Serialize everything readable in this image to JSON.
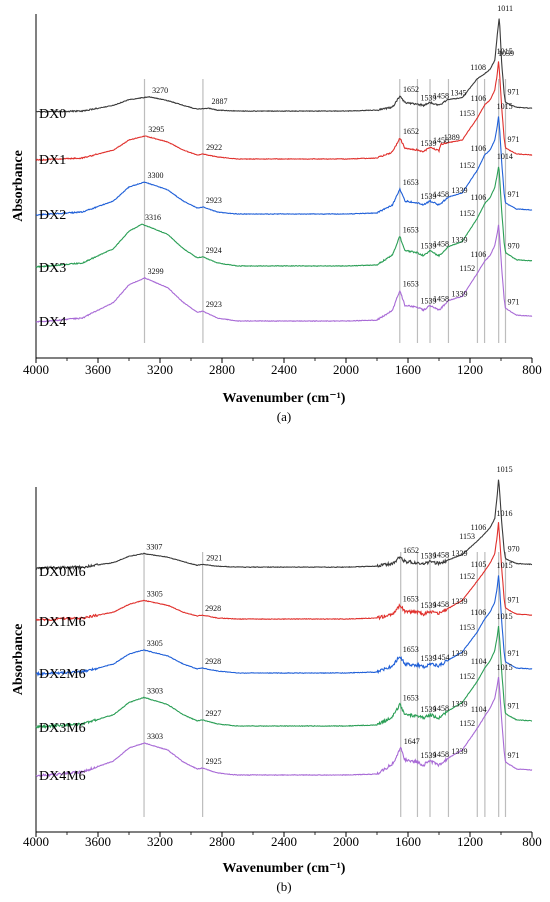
{
  "chart_data": [
    {
      "type": "line",
      "panel_label": "(a)",
      "xlabel": "Wavenumber (cm⁻¹)",
      "ylabel": "Absorbance",
      "xlim": [
        4000,
        800
      ],
      "x_ticks": [
        "4000",
        "3600",
        "3200",
        "2800",
        "2400",
        "2000",
        "1600",
        "1200",
        "800"
      ],
      "x_reversed": true,
      "y_ticks_shown": false,
      "reference_lines": [
        3300,
        2923,
        1653,
        1539,
        1458,
        1339,
        1152,
        1106,
        1015,
        971
      ],
      "series": [
        {
          "name": "DX0",
          "color": "#3a3a3a",
          "x": [
            4000,
            3700,
            3500,
            3400,
            3270,
            3150,
            3050,
            2960,
            2887,
            2830,
            2700,
            2300,
            2000,
            1800,
            1700,
            1652,
            1620,
            1539,
            1500,
            1458,
            1400,
            1345,
            1250,
            1153,
            1108,
            1070,
            1039,
            1025,
            1011,
            995,
            980,
            971,
            900,
            800
          ],
          "y": [
            0.0,
            0.01,
            0.07,
            0.13,
            0.16,
            0.12,
            0.07,
            0.03,
            0.04,
            0.02,
            0.01,
            0.01,
            0.01,
            0.02,
            0.05,
            0.17,
            0.1,
            0.08,
            0.07,
            0.1,
            0.07,
            0.13,
            0.15,
            0.35,
            0.4,
            0.45,
            0.55,
            0.8,
            1.0,
            0.5,
            0.2,
            0.1,
            0.05,
            0.04
          ]
        },
        {
          "name": "DX1",
          "color": "#e0302c",
          "x": [
            4000,
            3700,
            3500,
            3400,
            3295,
            3150,
            3050,
            2960,
            2922,
            2830,
            2700,
            2300,
            2000,
            1800,
            1700,
            1652,
            1620,
            1539,
            1500,
            1458,
            1400,
            1389,
            1250,
            1153,
            1106,
            1070,
            1040,
            1025,
            1015,
            995,
            980,
            971,
            900,
            800
          ],
          "y": [
            0.0,
            0.02,
            0.1,
            0.2,
            0.24,
            0.18,
            0.1,
            0.05,
            0.06,
            0.03,
            0.01,
            0.01,
            0.01,
            0.02,
            0.08,
            0.22,
            0.12,
            0.1,
            0.08,
            0.13,
            0.09,
            0.16,
            0.2,
            0.42,
            0.55,
            0.6,
            0.7,
            0.85,
            1.0,
            0.52,
            0.22,
            0.12,
            0.06,
            0.05
          ]
        },
        {
          "name": "DX2",
          "color": "#2060d8",
          "x": [
            4000,
            3700,
            3500,
            3400,
            3300,
            3150,
            3050,
            2960,
            2923,
            2830,
            2700,
            2300,
            2000,
            1800,
            1700,
            1653,
            1620,
            1539,
            1500,
            1458,
            1400,
            1339,
            1250,
            1152,
            1106,
            1070,
            1040,
            1025,
            1015,
            995,
            980,
            971,
            900,
            800
          ],
          "y": [
            0.0,
            0.03,
            0.14,
            0.28,
            0.33,
            0.25,
            0.14,
            0.07,
            0.08,
            0.03,
            0.01,
            0.01,
            0.01,
            0.02,
            0.1,
            0.26,
            0.14,
            0.12,
            0.1,
            0.14,
            0.1,
            0.18,
            0.22,
            0.45,
            0.6,
            0.65,
            0.75,
            0.88,
            1.0,
            0.52,
            0.22,
            0.12,
            0.06,
            0.05
          ]
        },
        {
          "name": "DX3",
          "color": "#2a9e55",
          "x": [
            4000,
            3700,
            3500,
            3400,
            3316,
            3150,
            3050,
            2960,
            2924,
            2830,
            2700,
            2300,
            2000,
            1800,
            1700,
            1653,
            1620,
            1539,
            1500,
            1458,
            1400,
            1339,
            1250,
            1152,
            1106,
            1070,
            1040,
            1025,
            1014,
            995,
            980,
            970,
            900,
            800
          ],
          "y": [
            0.0,
            0.04,
            0.18,
            0.35,
            0.42,
            0.32,
            0.18,
            0.09,
            0.1,
            0.04,
            0.01,
            0.01,
            0.01,
            0.02,
            0.12,
            0.3,
            0.16,
            0.14,
            0.11,
            0.16,
            0.11,
            0.2,
            0.25,
            0.48,
            0.62,
            0.68,
            0.78,
            0.9,
            1.0,
            0.54,
            0.24,
            0.14,
            0.07,
            0.06
          ]
        },
        {
          "name": "DX4",
          "color": "#a86ad6",
          "x": [
            4000,
            3700,
            3500,
            3400,
            3299,
            3150,
            3050,
            2960,
            2923,
            2830,
            2700,
            2300,
            2000,
            1800,
            1700,
            1653,
            1620,
            1539,
            1500,
            1458,
            1400,
            1339,
            1250,
            1152,
            1106,
            1070,
            1040,
            1025,
            1015,
            995,
            980,
            971,
            900,
            800
          ],
          "y": [
            0.0,
            0.04,
            0.2,
            0.38,
            0.45,
            0.35,
            0.2,
            0.1,
            0.11,
            0.04,
            0.01,
            0.01,
            0.01,
            0.02,
            0.12,
            0.32,
            0.17,
            0.15,
            0.12,
            0.17,
            0.12,
            0.22,
            0.26,
            0.5,
            0.62,
            0.68,
            0.78,
            0.9,
            1.0,
            0.54,
            0.24,
            0.14,
            0.07,
            0.06
          ]
        }
      ],
      "annotations": [
        {
          "series": "DX0",
          "labels": [
            "3270",
            "2887",
            "1652",
            "1539",
            "1458",
            "1345",
            "1108",
            "1039",
            "1011",
            "971"
          ]
        },
        {
          "series": "DX1",
          "labels": [
            "3295",
            "2922",
            "1652",
            "1539",
            "1458",
            "1389",
            "1153",
            "1106",
            "1015",
            "971"
          ]
        },
        {
          "series": "DX2",
          "labels": [
            "3300",
            "2923",
            "1653",
            "1539",
            "1458",
            "1339",
            "1152",
            "1106",
            "1015",
            "971"
          ]
        },
        {
          "series": "DX3",
          "labels": [
            "3316",
            "2924",
            "1653",
            "1539",
            "1458",
            "1339",
            "1152",
            "1106",
            "1014",
            "970"
          ]
        },
        {
          "series": "DX4",
          "labels": [
            "3299",
            "2923",
            "1653",
            "1539",
            "1458",
            "1339",
            "1152",
            "1106",
            "971"
          ]
        }
      ]
    },
    {
      "type": "line",
      "panel_label": "(b)",
      "xlabel": "Wavenumber (cm⁻¹)",
      "ylabel": "Absorbance",
      "xlim": [
        4000,
        800
      ],
      "x_ticks": [
        "4000",
        "3600",
        "3200",
        "2800",
        "2400",
        "2000",
        "1600",
        "1200",
        "800"
      ],
      "x_reversed": true,
      "y_ticks_shown": false,
      "reference_lines": [
        3303,
        2925,
        1647,
        1539,
        1458,
        1339,
        1153,
        1104,
        1015,
        971
      ],
      "series": [
        {
          "name": "DX0M6",
          "color": "#3a3a3a",
          "x": [
            4000,
            3700,
            3500,
            3400,
            3307,
            3150,
            3050,
            2960,
            2921,
            2830,
            2700,
            2300,
            2000,
            1800,
            1700,
            1652,
            1620,
            1539,
            1500,
            1458,
            1400,
            1339,
            1250,
            1153,
            1106,
            1070,
            1040,
            1025,
            1015,
            995,
            980,
            970,
            900,
            800
          ],
          "y": [
            0.0,
            0.01,
            0.06,
            0.13,
            0.16,
            0.12,
            0.07,
            0.03,
            0.04,
            0.02,
            0.01,
            0.01,
            0.01,
            0.02,
            0.05,
            0.12,
            0.07,
            0.06,
            0.05,
            0.07,
            0.05,
            0.09,
            0.15,
            0.3,
            0.38,
            0.45,
            0.55,
            0.8,
            1.0,
            0.5,
            0.2,
            0.1,
            0.05,
            0.04
          ]
        },
        {
          "name": "DX1M6",
          "color": "#e0302c",
          "x": [
            4000,
            3700,
            3500,
            3400,
            3305,
            3150,
            3050,
            2960,
            2928,
            2830,
            2700,
            2300,
            2000,
            1800,
            1700,
            1653,
            1620,
            1539,
            1500,
            1458,
            1400,
            1339,
            1250,
            1152,
            1105,
            1070,
            1040,
            1025,
            1016,
            995,
            980,
            971,
            900,
            800
          ],
          "y": [
            0.0,
            0.02,
            0.08,
            0.16,
            0.2,
            0.15,
            0.08,
            0.04,
            0.05,
            0.02,
            0.01,
            0.01,
            0.01,
            0.02,
            0.06,
            0.15,
            0.09,
            0.08,
            0.06,
            0.09,
            0.07,
            0.12,
            0.2,
            0.4,
            0.5,
            0.58,
            0.68,
            0.85,
            1.0,
            0.52,
            0.22,
            0.12,
            0.06,
            0.05
          ]
        },
        {
          "name": "DX2M6",
          "color": "#2060d8",
          "x": [
            4000,
            3700,
            3500,
            3400,
            3305,
            3150,
            3050,
            2960,
            2928,
            2830,
            2700,
            2300,
            2000,
            1800,
            1700,
            1653,
            1620,
            1539,
            1500,
            1454,
            1400,
            1339,
            1250,
            1153,
            1106,
            1070,
            1040,
            1025,
            1015,
            995,
            980,
            971,
            900,
            800
          ],
          "y": [
            0.0,
            0.02,
            0.1,
            0.2,
            0.24,
            0.18,
            0.1,
            0.05,
            0.06,
            0.03,
            0.01,
            0.01,
            0.01,
            0.02,
            0.08,
            0.18,
            0.1,
            0.09,
            0.07,
            0.1,
            0.08,
            0.14,
            0.22,
            0.42,
            0.55,
            0.62,
            0.72,
            0.86,
            1.0,
            0.52,
            0.22,
            0.12,
            0.06,
            0.05
          ]
        },
        {
          "name": "DX3M6",
          "color": "#2a9e55",
          "x": [
            4000,
            3700,
            3500,
            3400,
            3303,
            3150,
            3050,
            2960,
            2927,
            2830,
            2700,
            2300,
            2000,
            1800,
            1700,
            1653,
            1620,
            1539,
            1500,
            1458,
            1400,
            1339,
            1250,
            1152,
            1104,
            1070,
            1040,
            1025,
            1015,
            995,
            980,
            971,
            900,
            800
          ],
          "y": [
            0.0,
            0.03,
            0.12,
            0.24,
            0.29,
            0.22,
            0.12,
            0.06,
            0.07,
            0.03,
            0.01,
            0.01,
            0.01,
            0.02,
            0.1,
            0.22,
            0.12,
            0.11,
            0.09,
            0.12,
            0.09,
            0.16,
            0.24,
            0.45,
            0.58,
            0.65,
            0.75,
            0.88,
            1.0,
            0.54,
            0.24,
            0.13,
            0.07,
            0.06
          ]
        },
        {
          "name": "DX4M6",
          "color": "#a86ad6",
          "x": [
            4000,
            3700,
            3500,
            3400,
            3303,
            3150,
            3050,
            2960,
            2925,
            2830,
            2700,
            2300,
            2000,
            1800,
            1700,
            1647,
            1620,
            1539,
            1500,
            1458,
            1400,
            1339,
            1250,
            1152,
            1104,
            1070,
            1040,
            1025,
            1015,
            995,
            980,
            971,
            900,
            800
          ],
          "y": [
            0.0,
            0.04,
            0.15,
            0.28,
            0.33,
            0.26,
            0.14,
            0.07,
            0.08,
            0.03,
            0.01,
            0.01,
            0.01,
            0.02,
            0.12,
            0.28,
            0.16,
            0.14,
            0.11,
            0.15,
            0.11,
            0.18,
            0.26,
            0.48,
            0.6,
            0.68,
            0.78,
            0.9,
            1.0,
            0.55,
            0.25,
            0.14,
            0.07,
            0.06
          ]
        }
      ],
      "annotations": [
        {
          "series": "DX0M6",
          "labels": [
            "3307",
            "2921",
            "1652",
            "1539",
            "1458",
            "1339",
            "1153",
            "1106",
            "1015",
            "970"
          ]
        },
        {
          "series": "DX1M6",
          "labels": [
            "3305",
            "2928",
            "1653",
            "1539",
            "1458",
            "1339",
            "1152",
            "1105",
            "1016",
            "971"
          ]
        },
        {
          "series": "DX2M6",
          "labels": [
            "3305",
            "2928",
            "1653",
            "1539",
            "1454",
            "1339",
            "1153",
            "1106",
            "1015",
            "971"
          ]
        },
        {
          "series": "DX3M6",
          "labels": [
            "3303",
            "2927",
            "1653",
            "1539",
            "1458",
            "1339",
            "1152",
            "1104",
            "1015",
            "971"
          ]
        },
        {
          "series": "DX4M6",
          "labels": [
            "3303",
            "2925",
            "1647",
            "1539",
            "1458",
            "1339",
            "1152",
            "1104",
            "1015",
            "971"
          ]
        }
      ]
    }
  ]
}
